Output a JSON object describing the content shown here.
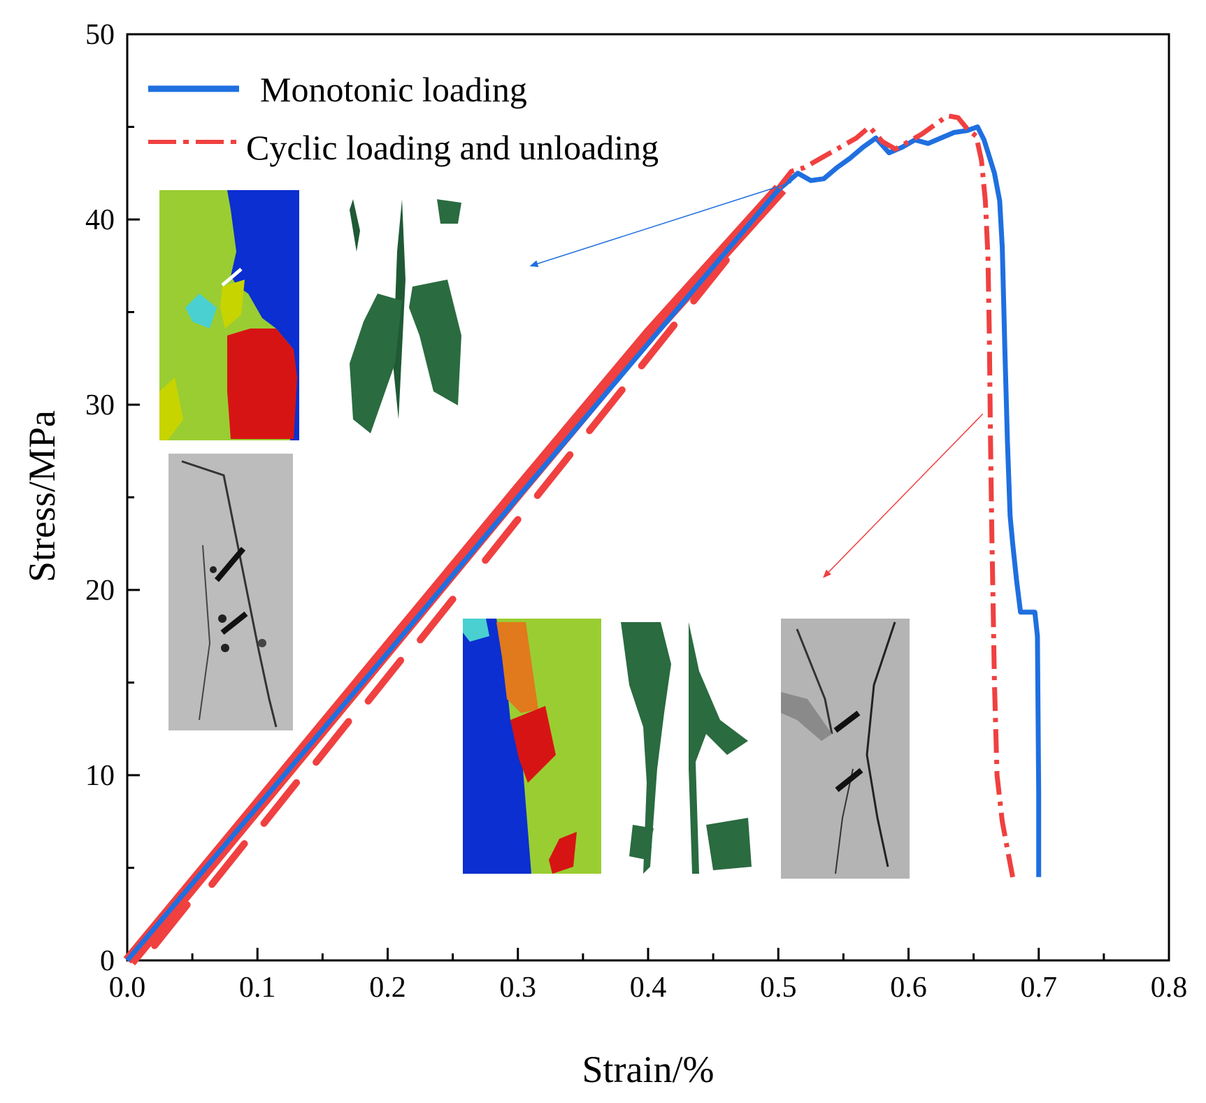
{
  "chart_data": {
    "type": "line",
    "title": "",
    "xlabel": "Strain/%",
    "ylabel": "Stress/MPa",
    "xlim": [
      0.0,
      0.8
    ],
    "ylim": [
      0,
      50
    ],
    "x_ticks": [
      "0.0",
      "0.1",
      "0.2",
      "0.3",
      "0.4",
      "0.5",
      "0.6",
      "0.7",
      "0.8"
    ],
    "y_ticks": [
      "0",
      "10",
      "20",
      "30",
      "40",
      "50"
    ],
    "grid": false,
    "legend_position": "top-left",
    "series": [
      {
        "name": "Monotonic loading",
        "color": "#1f6fe0",
        "style": "solid",
        "points": [
          [
            0.0,
            0
          ],
          [
            0.1,
            8.3
          ],
          [
            0.2,
            16.6
          ],
          [
            0.3,
            25.0
          ],
          [
            0.4,
            33.3
          ],
          [
            0.5,
            41.6
          ],
          [
            0.515,
            42.5
          ],
          [
            0.525,
            42.1
          ],
          [
            0.535,
            42.2
          ],
          [
            0.545,
            42.8
          ],
          [
            0.555,
            43.3
          ],
          [
            0.565,
            43.9
          ],
          [
            0.575,
            44.4
          ],
          [
            0.58,
            44.0
          ],
          [
            0.585,
            43.6
          ],
          [
            0.595,
            43.9
          ],
          [
            0.605,
            44.3
          ],
          [
            0.615,
            44.1
          ],
          [
            0.625,
            44.4
          ],
          [
            0.635,
            44.7
          ],
          [
            0.645,
            44.8
          ],
          [
            0.653,
            45.0
          ],
          [
            0.658,
            44.3
          ],
          [
            0.662,
            43.4
          ],
          [
            0.666,
            42.5
          ],
          [
            0.67,
            41.0
          ],
          [
            0.672,
            38.5
          ],
          [
            0.674,
            33.0
          ],
          [
            0.676,
            28.0
          ],
          [
            0.678,
            24.0
          ],
          [
            0.68,
            22.5
          ],
          [
            0.683,
            20.5
          ],
          [
            0.686,
            18.8
          ],
          [
            0.697,
            18.8
          ],
          [
            0.699,
            17.5
          ],
          [
            0.7,
            9.0
          ],
          [
            0.7,
            4.5
          ]
        ]
      },
      {
        "name": "Cyclic loading and unloading",
        "color": "#f04040",
        "style": "dash-dot",
        "points": [
          [
            0.0,
            0
          ],
          [
            0.1,
            8.5
          ],
          [
            0.2,
            17.0
          ],
          [
            0.3,
            25.5
          ],
          [
            0.4,
            33.9
          ],
          [
            0.5,
            41.7
          ],
          [
            0.51,
            42.6
          ],
          [
            0.52,
            42.8
          ],
          [
            0.53,
            43.2
          ],
          [
            0.54,
            43.6
          ],
          [
            0.55,
            44.0
          ],
          [
            0.56,
            44.4
          ],
          [
            0.57,
            45.0
          ],
          [
            0.58,
            44.2
          ],
          [
            0.59,
            43.8
          ],
          [
            0.6,
            44.2
          ],
          [
            0.61,
            44.6
          ],
          [
            0.62,
            45.1
          ],
          [
            0.63,
            45.6
          ],
          [
            0.638,
            45.5
          ],
          [
            0.645,
            44.9
          ],
          [
            0.652,
            44.5
          ],
          [
            0.656,
            43.2
          ],
          [
            0.659,
            41.0
          ],
          [
            0.661,
            38.0
          ],
          [
            0.662,
            34.0
          ],
          [
            0.663,
            28.0
          ],
          [
            0.664,
            23.0
          ],
          [
            0.665,
            19.0
          ],
          [
            0.666,
            15.0
          ],
          [
            0.668,
            10.0
          ],
          [
            0.672,
            7.5
          ],
          [
            0.676,
            6.0
          ],
          [
            0.68,
            4.5
          ]
        ],
        "cycles": [
          [
            0.046,
            3.0
          ],
          [
            0.09,
            6.3
          ],
          [
            0.13,
            9.6
          ],
          [
            0.17,
            12.9
          ],
          [
            0.21,
            16.2
          ],
          [
            0.25,
            19.5
          ],
          [
            0.3,
            23.8
          ],
          [
            0.34,
            27.3
          ],
          [
            0.38,
            30.8
          ],
          [
            0.42,
            34.3
          ],
          [
            0.46,
            37.8
          ]
        ]
      }
    ],
    "annotations": [
      {
        "type": "arrow",
        "from": [
          0.51,
          42.0
        ],
        "to": [
          0.31,
          37.5
        ],
        "color": "#1f6fe0"
      },
      {
        "type": "arrow",
        "from": [
          0.657,
          29.5
        ],
        "to": [
          0.535,
          20.7
        ],
        "color": "#f04040"
      }
    ]
  }
}
